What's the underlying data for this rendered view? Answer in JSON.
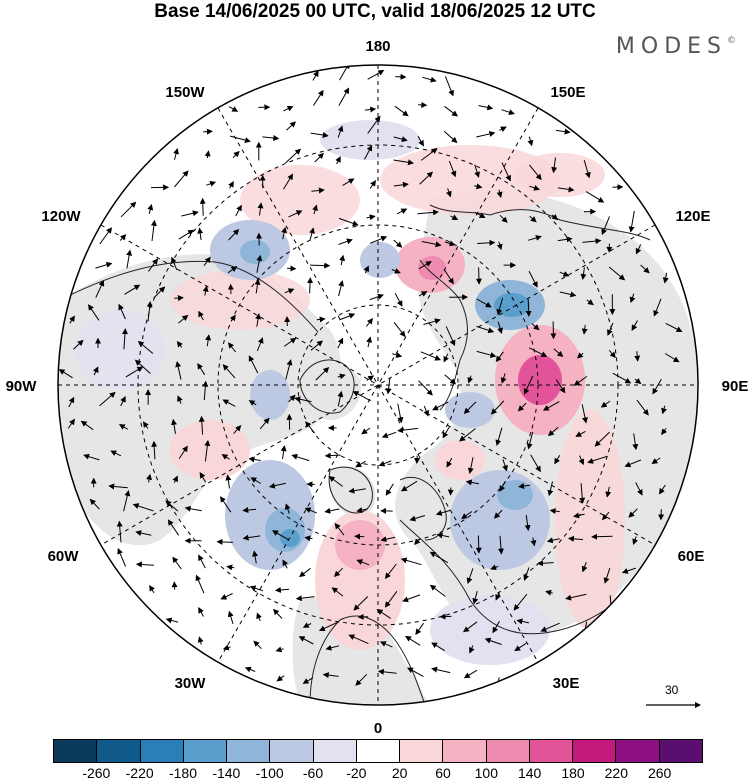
{
  "title": "Base 14/06/2025 00 UTC, valid 18/06/2025 12 UTC",
  "brand": "MODES",
  "brand_mark": "©",
  "longitude_labels": {
    "n180": "180",
    "e150": "150E",
    "e120": "120E",
    "e90": "90E",
    "e60": "60E",
    "e30": "30E",
    "s0": "0",
    "w30": "30W",
    "w60": "60W",
    "w90": "90W",
    "w120": "120W",
    "w150": "150W"
  },
  "vector_reference": {
    "value": "30"
  },
  "colorbar": {
    "colors": [
      "#0b3a5c",
      "#0f5a8a",
      "#2a7fb8",
      "#5a9fcc",
      "#8fb5d9",
      "#bdc8e2",
      "#e2e1ef",
      "#ffffff",
      "#f9d7d8",
      "#f5b2c3",
      "#ef8bb0",
      "#e2539a",
      "#c2197d",
      "#8e0f80",
      "#5a0f70"
    ],
    "ticks": [
      "-260",
      "-220",
      "-180",
      "-140",
      "-100",
      "-60",
      "-20",
      "20",
      "60",
      "100",
      "140",
      "180",
      "220",
      "260"
    ]
  },
  "colors": {
    "land_shade": "#e6e6e6",
    "coastline": "#222222",
    "graticule": "#000000"
  }
}
